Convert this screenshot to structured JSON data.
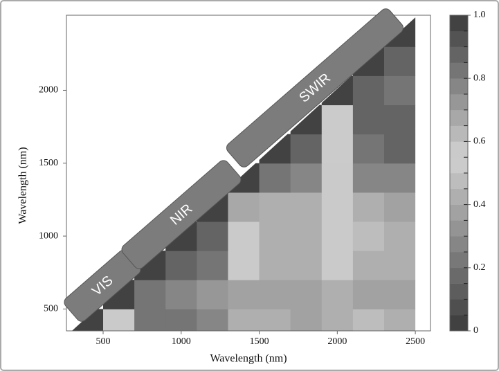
{
  "chart_data": {
    "type": "contour",
    "x_label": "Wavelength (nm)",
    "y_label": "Wavelength (nm)",
    "xlim": [
      265,
      2597
    ],
    "ylim": [
      350,
      2515
    ],
    "xticks": [
      500,
      1000,
      1500,
      2000,
      2500
    ],
    "yticks": [
      500,
      1000,
      1500,
      2000
    ],
    "x": [
      400,
      600,
      800,
      1000,
      1200,
      1400,
      1600,
      1800,
      2000,
      2200,
      2400
    ],
    "y": [
      400,
      600,
      800,
      1000,
      1200,
      1400,
      1600,
      1800,
      2000,
      2200,
      2400
    ],
    "z": [
      [
        1,
        0.6,
        0.85,
        0.85,
        0.8,
        0.45,
        0.45,
        0.4,
        0.45,
        0.5,
        0.45
      ],
      [
        null,
        1,
        0.85,
        0.8,
        0.75,
        0.4,
        0.4,
        0.4,
        0.45,
        0.4,
        0.4
      ],
      [
        null,
        null,
        1,
        0.9,
        0.85,
        0.6,
        0.45,
        0.45,
        0.6,
        0.45,
        0.45
      ],
      [
        null,
        null,
        null,
        1,
        0.9,
        0.6,
        0.45,
        0.45,
        0.6,
        0.5,
        0.45
      ],
      [
        null,
        null,
        null,
        null,
        1,
        0.7,
        0.45,
        0.45,
        0.6,
        0.45,
        0.4
      ],
      [
        null,
        null,
        null,
        null,
        null,
        1,
        0.85,
        0.8,
        0.6,
        0.8,
        0.8
      ],
      [
        null,
        null,
        null,
        null,
        null,
        null,
        1,
        0.9,
        0.55,
        0.85,
        0.9
      ],
      [
        null,
        null,
        null,
        null,
        null,
        null,
        null,
        1,
        0.55,
        0.9,
        0.9
      ],
      [
        null,
        null,
        null,
        null,
        null,
        null,
        null,
        null,
        1,
        0.9,
        0.85
      ],
      [
        null,
        null,
        null,
        null,
        null,
        null,
        null,
        null,
        null,
        1,
        0.9
      ],
      [
        null,
        null,
        null,
        null,
        null,
        null,
        null,
        null,
        null,
        null,
        1
      ]
    ],
    "colorbar": {
      "lim": [
        0,
        1
      ],
      "ticks": [
        {
          "value": 0,
          "label": "0"
        },
        0.2,
        0.4,
        0.6,
        0.8,
        {
          "value": 1,
          "label": "1.0"
        }
      ],
      "levels": [
        0,
        0.05,
        0.1,
        0.15,
        0.2,
        0.25,
        0.3,
        0.35,
        0.4,
        0.45,
        0.5,
        0.55,
        0.6,
        0.65,
        0.7,
        0.75,
        0.8,
        0.85,
        0.9,
        0.95,
        1
      ],
      "colorscale": [
        [
          0,
          "#3a3a3a"
        ],
        [
          0.55,
          "#d2d2d2"
        ],
        [
          1,
          "#3a3a3a"
        ]
      ]
    },
    "annotations": [
      {
        "text": "VIS"
      },
      {
        "text": "NIR"
      },
      {
        "text": "SWIR"
      }
    ]
  }
}
